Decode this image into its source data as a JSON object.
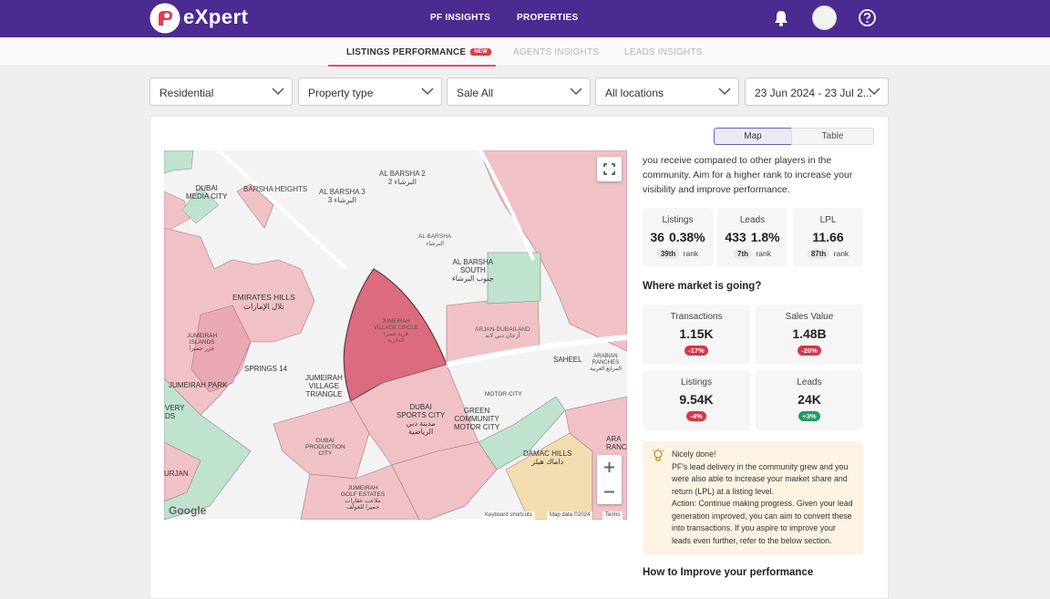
{
  "header": {
    "brand": "eXpert",
    "nav": [
      "PF INSIGHTS",
      "PROPERTIES"
    ]
  },
  "tabs": {
    "items": [
      {
        "label": "LISTINGS PERFORMANCE",
        "badge": "NEW",
        "active": true
      },
      {
        "label": "AGENTS INSIGHTS"
      },
      {
        "label": "LEADS INSIGHTS"
      }
    ]
  },
  "filters": {
    "category": "Residential",
    "property_type": "Property type",
    "purpose": "Sale All",
    "location": "All locations",
    "date_range": "23 Jun 2024 - 23 Jul 2..."
  },
  "view_toggle": {
    "map": "Map",
    "table": "Table",
    "active": "Map"
  },
  "map": {
    "labels": {
      "al_barsha_2": "AL BARSHA 2",
      "al_barsha_2_ar": "البرشاء 2",
      "barsha_heights": "BARSHA HEIGHTS",
      "al_barsha_3": "AL BARSHA 3",
      "al_barsha_3_ar": "البرشاء 3",
      "dubai_media_city_1": "DUBAI",
      "dubai_media_city_2": "MEDIA CITY",
      "al_barsha": "AL BARSHA",
      "al_barsha_ar": "البرشاء",
      "al_barsha_south_1": "AL BARSHA",
      "al_barsha_south_2": "SOUTH",
      "al_barsha_south_ar": "جنوب البرشاء",
      "emirates_hills": "EMIRATES HILLS",
      "emirates_hills_ar": "تلال الإمارات",
      "jumeirah_islands_1": "JUMEIRAH",
      "jumeirah_islands_2": "ISLANDS",
      "jumeirah_islands_ar": "جزر جميرا",
      "jvc_1": "JUMEIRAH",
      "jvc_2": "VILLAGE CIRCLE",
      "jvc_ar_1": "قرية جميرا",
      "jvc_ar_2": "الدائرية",
      "arjan": "ARJAN-DUBAILAND",
      "arjan_ar": "أرجان دبي لاند",
      "springs_14": "SPRINGS 14",
      "jumeirah_park": "JUMEIRAH PARK",
      "jvt_1": "JUMEIRAH",
      "jvt_2": "VILLAGE",
      "jvt_3": "TRIANGLE",
      "saheel": "SAHEEL",
      "arabian_ranches_1": "ARABIAN",
      "arabian_ranches_2": "RANCHES",
      "arabian_ranches_ar": "المرابع العربية",
      "motor_city": "MOTOR CITY",
      "sports_city_1": "DUBAI",
      "sports_city_2": "SPORTS CITY",
      "sports_city_ar_1": "مدينة دبي",
      "sports_city_ar_2": "الرياضية",
      "green_community_1": "GREEN",
      "green_community_2": "COMMUNITY",
      "green_community_3": "MOTOR CITY",
      "production_city_1": "DUBAI",
      "production_city_2": "PRODUCTION",
      "production_city_3": "CITY",
      "golf_estates_1": "JUMEIRAH",
      "golf_estates_2": "GOLF ESTATES",
      "golf_estates_ar_1": "ملاعب عقارات",
      "golf_estates_ar_2": "جميرا للغولف",
      "damac_hills": "DAMAC HILLS",
      "damac_hills_ar": "داماك هيلز",
      "very_1": "VERY",
      "very_2": "DS",
      "urjan": "URJAN",
      "ara_1": "ARA",
      "ara_2": "RANCH"
    },
    "attribution": {
      "logo": "Google",
      "shortcuts": "Keyboard shortcuts",
      "data": "Map data ©2024",
      "terms": "Terms"
    }
  },
  "panel": {
    "intro_lines": [
      "you receive compared to other players in the",
      "community. Aim for a higher rank to increase your",
      "visibility and improve performance."
    ],
    "rank_stats": [
      {
        "label": "Listings",
        "value": "36",
        "pct": "0.38%",
        "rank": "39th",
        "rank_label": "rank"
      },
      {
        "label": "Leads",
        "value": "433",
        "pct": "1.8%",
        "rank": "7th",
        "rank_label": "rank"
      },
      {
        "label": "LPL",
        "value": "11.66",
        "rank": "87th",
        "rank_label": "rank"
      }
    ],
    "market_title": "Where market is going?",
    "market_stats": [
      {
        "label": "Transactions",
        "value": "1.15K",
        "change": "-17%"
      },
      {
        "label": "Sales Value",
        "value": "1.48B",
        "change": "-20%"
      },
      {
        "label": "Listings",
        "value": "9.54K",
        "change": "-4%"
      },
      {
        "label": "Leads",
        "value": "24K",
        "change": "+3%"
      }
    ],
    "insight": {
      "title": "Nicely done!",
      "lines": [
        "PF's lead delivery in the community grew and you",
        "were also able to increase your market share and",
        "return (LPL) at a listing level.",
        "Action: Continue making progress. Given your lead",
        "generation improved, you can aim to convert these",
        "into transactions. If you aspire to improve your",
        "leads even further, refer to the below section."
      ]
    },
    "improve_title": "How to Improve your performance"
  },
  "colors": {
    "brand_purple": "#4b2a91",
    "accent_red": "#e0525f",
    "map_pink": "#f0c2c8",
    "map_dark_pink": "#dc6b80",
    "map_green": "#bfe3cf",
    "map_tan": "#f3dcb0",
    "down": "#d63548",
    "up": "#1f9d62"
  }
}
